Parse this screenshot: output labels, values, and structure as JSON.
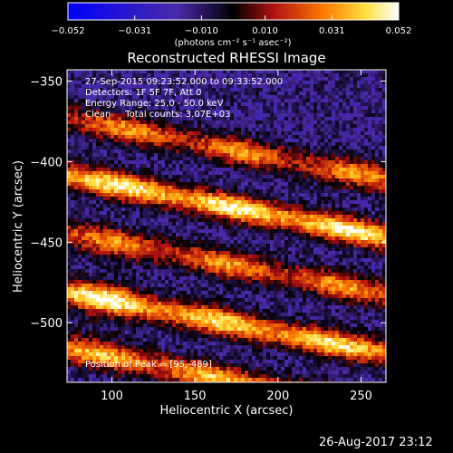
{
  "colorbar": {
    "tick_labels": [
      "−0.052",
      "−0.031",
      "−0.010",
      "0.010",
      "0.031",
      "0.052"
    ],
    "tick_values": [
      -0.052,
      -0.031,
      -0.01,
      0.01,
      0.031,
      0.052
    ],
    "range": [
      -0.052,
      0.052
    ],
    "units_label": "(photons cm⁻² s⁻¹ asec⁻²)",
    "colors": [
      "#0000ff",
      "#4a2aa8",
      "#000000",
      "#b01010",
      "#ff8000",
      "#ffe040",
      "#ffffff"
    ]
  },
  "chart_data": {
    "type": "heatmap",
    "title": "Reconstructed RHESSI Image",
    "xlabel": "Heliocentric X (arcsec)",
    "ylabel": "Heliocentric Y (arcsec)",
    "xlim": [
      73,
      265
    ],
    "ylim": [
      -537,
      -343
    ],
    "x_ticks": [
      100,
      150,
      200,
      250
    ],
    "y_ticks": [
      -350,
      -400,
      -450,
      -500
    ],
    "x_tick_labels": [
      "100",
      "150",
      "200",
      "250"
    ],
    "y_tick_labels": [
      "−350",
      "−400",
      "−450",
      "−500"
    ],
    "peak_position": [
      95,
      -489
    ],
    "bright_bands": [
      {
        "slope": -0.2,
        "intercept": -378
      },
      {
        "slope": -0.2,
        "intercept": -414
      },
      {
        "slope": -0.2,
        "intercept": -450
      },
      {
        "slope": -0.2,
        "intercept": -486
      },
      {
        "slope": -0.2,
        "intercept": -522
      }
    ],
    "grid": false
  },
  "info": {
    "line1": "27-Sep-2015 09:23:52.000 to 09:33:52.000",
    "line2": "Detectors: 1F 5F 7F, Att 0",
    "line3": "Energy Range: 25.0 - 50.0 keV",
    "line4": "Clean     Total counts: 3.07E+03",
    "peak_text": "Position of Peak = [95,-489]"
  },
  "footer": {
    "timestamp": "26-Aug-2017 23:12"
  }
}
